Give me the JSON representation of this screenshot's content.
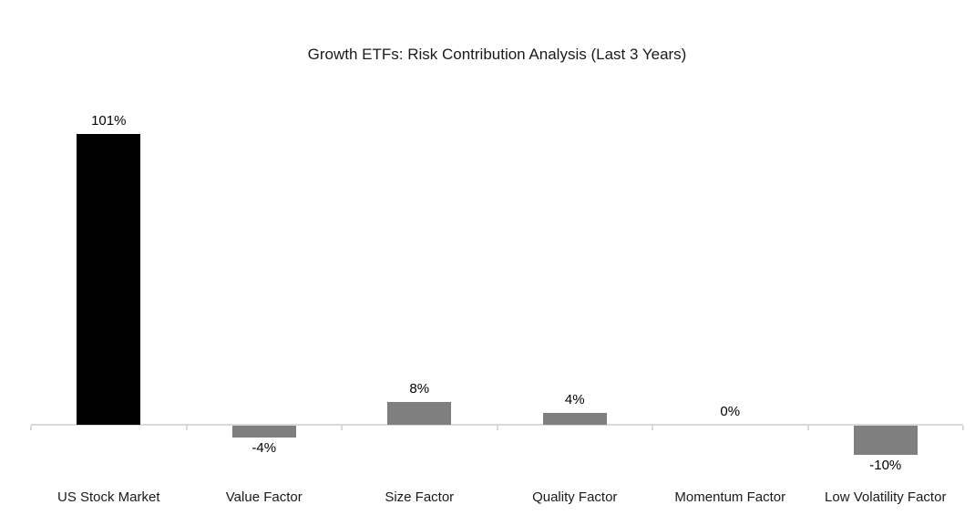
{
  "chart_data": {
    "type": "bar",
    "title": "Growth ETFs: Risk Contribution Analysis (Last 3 Years)",
    "categories": [
      "US Stock Market",
      "Value Factor",
      "Size Factor",
      "Quality Factor",
      "Momentum Factor",
      "Low Volatility Factor"
    ],
    "values": [
      101,
      -4,
      8,
      4,
      0,
      -10
    ],
    "value_labels": [
      "101%",
      "-4%",
      "8%",
      "4%",
      "0%",
      "-10%"
    ],
    "bar_colors": [
      "#000000",
      "#7f7f7f",
      "#7f7f7f",
      "#7f7f7f",
      "#7f7f7f",
      "#7f7f7f"
    ],
    "xlabel": "",
    "ylabel": "",
    "ylim": [
      -10,
      101
    ],
    "grid": false,
    "legend": false,
    "axis_color": "#d9d9d9",
    "label_color": "#000000",
    "background": "#ffffff"
  }
}
